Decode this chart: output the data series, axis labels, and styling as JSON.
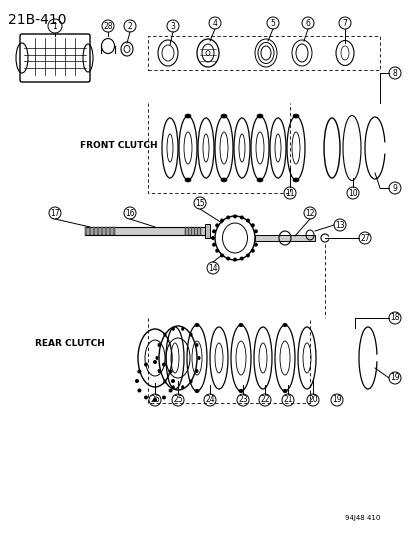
{
  "title": "21B-410",
  "subtitle_code": "94J48 410",
  "label_front": "FRONT CLUTCH",
  "label_rear": "REAR CLUTCH",
  "bg_color": "#ffffff",
  "line_color": "#000000",
  "figsize": [
    4.14,
    5.33
  ],
  "dpi": 100,
  "part_numbers_top": [
    1,
    28,
    2,
    3,
    4,
    5,
    6,
    7,
    8
  ],
  "part_numbers_middle": [
    17,
    16,
    15,
    14,
    12,
    13,
    27,
    11,
    10,
    9
  ],
  "part_numbers_bottom": [
    18,
    19,
    20,
    21,
    22,
    23,
    24,
    25,
    26
  ]
}
